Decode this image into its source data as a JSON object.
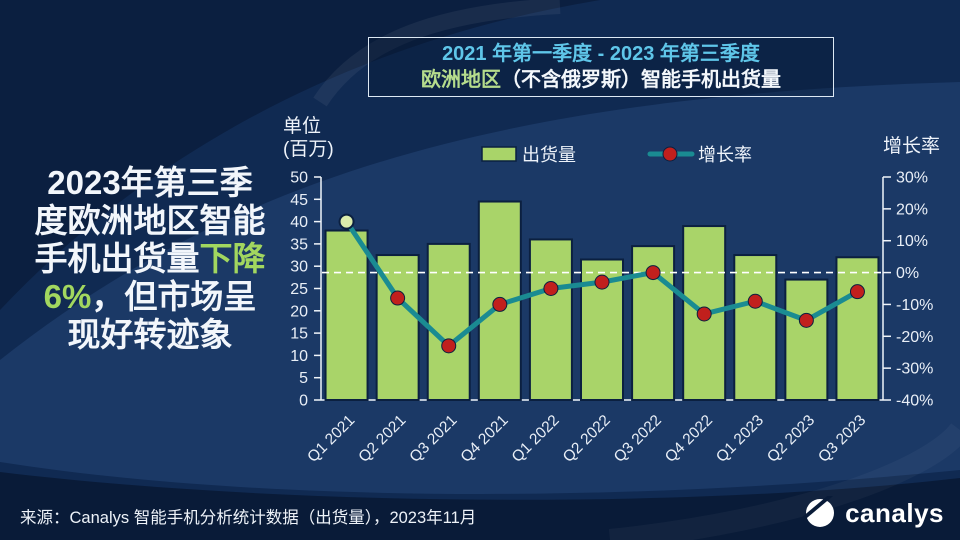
{
  "theme": {
    "background_navy": "#102a52",
    "background_dark": "#091b38",
    "band_light": "#1b3966",
    "bar_green": "#a9d469",
    "line_teal": "#1a8b92",
    "dot_red": "#c1201d",
    "first_dot_pale_green": "#dcedac",
    "accent_green_text": "#a2d75f",
    "accent_blue_text": "#5fc6e9",
    "axis_white": "#f0f5fa"
  },
  "title_box": {
    "line1": "2021 年第一季度 - 2023 年第三季度",
    "line2_accent": "欧洲地区",
    "line2_rest": "（不含俄罗斯）智能手机出货量"
  },
  "headline": {
    "lines": [
      [
        {
          "t": "2023年第三季",
          "g": false
        }
      ],
      [
        {
          "t": "度欧洲地区智能",
          "g": false
        }
      ],
      [
        {
          "t": "手机出货量",
          "g": false
        },
        {
          "t": "下降",
          "g": true
        }
      ],
      [
        {
          "t": "6%",
          "g": true
        },
        {
          "t": "，但市场呈",
          "g": false
        }
      ],
      [
        {
          "t": "现好转迹象",
          "g": false
        }
      ]
    ]
  },
  "chart_data": {
    "type": "bar+line combo",
    "categories": [
      "Q1 2021",
      "Q2 2021",
      "Q3 2021",
      "Q4 2021",
      "Q1 2022",
      "Q2 2022",
      "Q3 2022",
      "Q4 2022",
      "Q1 2023",
      "Q2 2023",
      "Q3 2023"
    ],
    "series": [
      {
        "name": "出货量",
        "type": "bar",
        "axis": "left",
        "unit": "百万",
        "color": "#a9d469",
        "values": [
          38,
          32.5,
          35,
          44.5,
          36,
          31.5,
          34.5,
          39,
          32.5,
          27,
          32
        ]
      },
      {
        "name": "增长率",
        "type": "line",
        "axis": "right",
        "unit": "%",
        "color": "#1a8b92",
        "marker_color": "#c1201d",
        "first_marker_color": "#dcedac",
        "values": [
          16,
          -8,
          -23,
          -10,
          -5,
          -3,
          0,
          -13,
          -9,
          -15,
          -6
        ]
      }
    ],
    "left_axis": {
      "title_line1": "单位",
      "title_line2": "(百万)",
      "min": 0,
      "max": 50,
      "step": 5
    },
    "right_axis": {
      "title": "增长率",
      "min": -40,
      "max": 30,
      "step": 10,
      "suffix": "%"
    },
    "zero_line_at_percent": 0,
    "legend": [
      "出货量",
      "增长率"
    ],
    "grid": "off"
  },
  "source": {
    "text": "来源：Canalys 智能手机分析统计数据（出货量），2023年11月"
  },
  "logo": {
    "wordmark": "canalys"
  }
}
